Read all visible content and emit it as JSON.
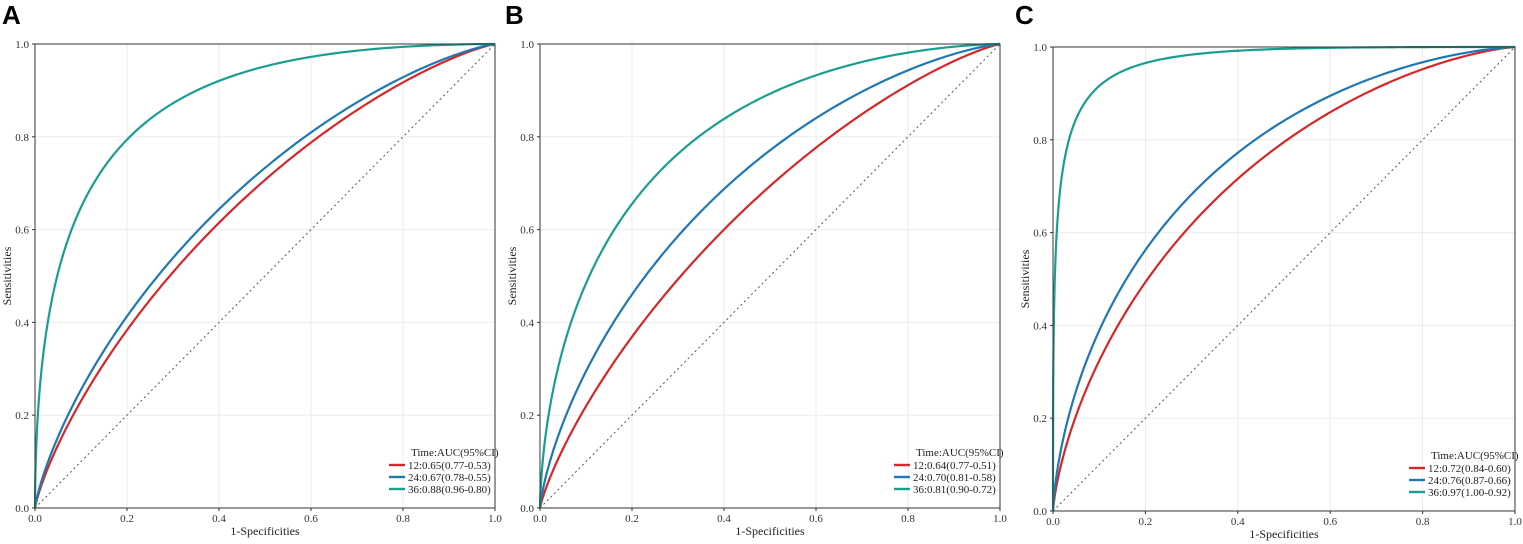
{
  "chart_data": [
    {
      "panel": "A",
      "type": "line",
      "title": "",
      "xlabel": "1-Specificities",
      "ylabel": "Sensitivities",
      "xlim": [
        0,
        1
      ],
      "ylim": [
        0,
        1
      ],
      "xticks": [
        "0.0",
        "0.2",
        "0.4",
        "0.6",
        "0.8",
        "1.0"
      ],
      "yticks": [
        "0.0",
        "0.2",
        "0.4",
        "0.6",
        "0.8",
        "1.0"
      ],
      "reference_line": "diagonal",
      "legend": {
        "title": "Time:AUC(95%CI)",
        "position": "bottom-right"
      },
      "series": [
        {
          "name": "12:0.65(0.77-0.53)",
          "color": "#d62728",
          "auc": 0.65
        },
        {
          "name": "24:0.67(0.78-0.55)",
          "color": "#1f77b4",
          "auc": 0.67
        },
        {
          "name": "36:0.88(0.96-0.80)",
          "color": "#1a9e8f",
          "auc": 0.88
        }
      ]
    },
    {
      "panel": "B",
      "type": "line",
      "title": "",
      "xlabel": "1-Specificities",
      "ylabel": "Sensitivities",
      "xlim": [
        0,
        1
      ],
      "ylim": [
        0,
        1
      ],
      "xticks": [
        "0.0",
        "0.2",
        "0.4",
        "0.6",
        "0.8",
        "1.0"
      ],
      "yticks": [
        "0.0",
        "0.2",
        "0.4",
        "0.6",
        "0.8",
        "1.0"
      ],
      "reference_line": "diagonal",
      "legend": {
        "title": "Time:AUC(95%CI)",
        "position": "bottom-right"
      },
      "series": [
        {
          "name": "12:0.64(0.77-0.51)",
          "color": "#d62728",
          "auc": 0.64
        },
        {
          "name": "24:0.70(0.81-0.58)",
          "color": "#1f77b4",
          "auc": 0.7
        },
        {
          "name": "36:0.81(0.90-0.72)",
          "color": "#1a9e8f",
          "auc": 0.81
        }
      ]
    },
    {
      "panel": "C",
      "type": "line",
      "title": "",
      "xlabel": "1-Specificities",
      "ylabel": "Sensitivities",
      "xlim": [
        0,
        1
      ],
      "ylim": [
        0,
        1
      ],
      "xticks": [
        "0.0",
        "0.2",
        "0.4",
        "0.6",
        "0.8",
        "1.0"
      ],
      "yticks": [
        "0.0",
        "0.2",
        "0.4",
        "0.6",
        "0.8",
        "1.0"
      ],
      "reference_line": "diagonal",
      "legend": {
        "title": "Time:AUC(95%CI)",
        "position": "bottom-right"
      },
      "series": [
        {
          "name": "12:0.72(0.84-0.60)",
          "color": "#d62728",
          "auc": 0.72
        },
        {
          "name": "24:0.76(0.87-0.66)",
          "color": "#1f77b4",
          "auc": 0.76
        },
        {
          "name": "36:0.97(1.00-0.92)",
          "color": "#1a9e8f",
          "auc": 0.97
        }
      ]
    }
  ]
}
